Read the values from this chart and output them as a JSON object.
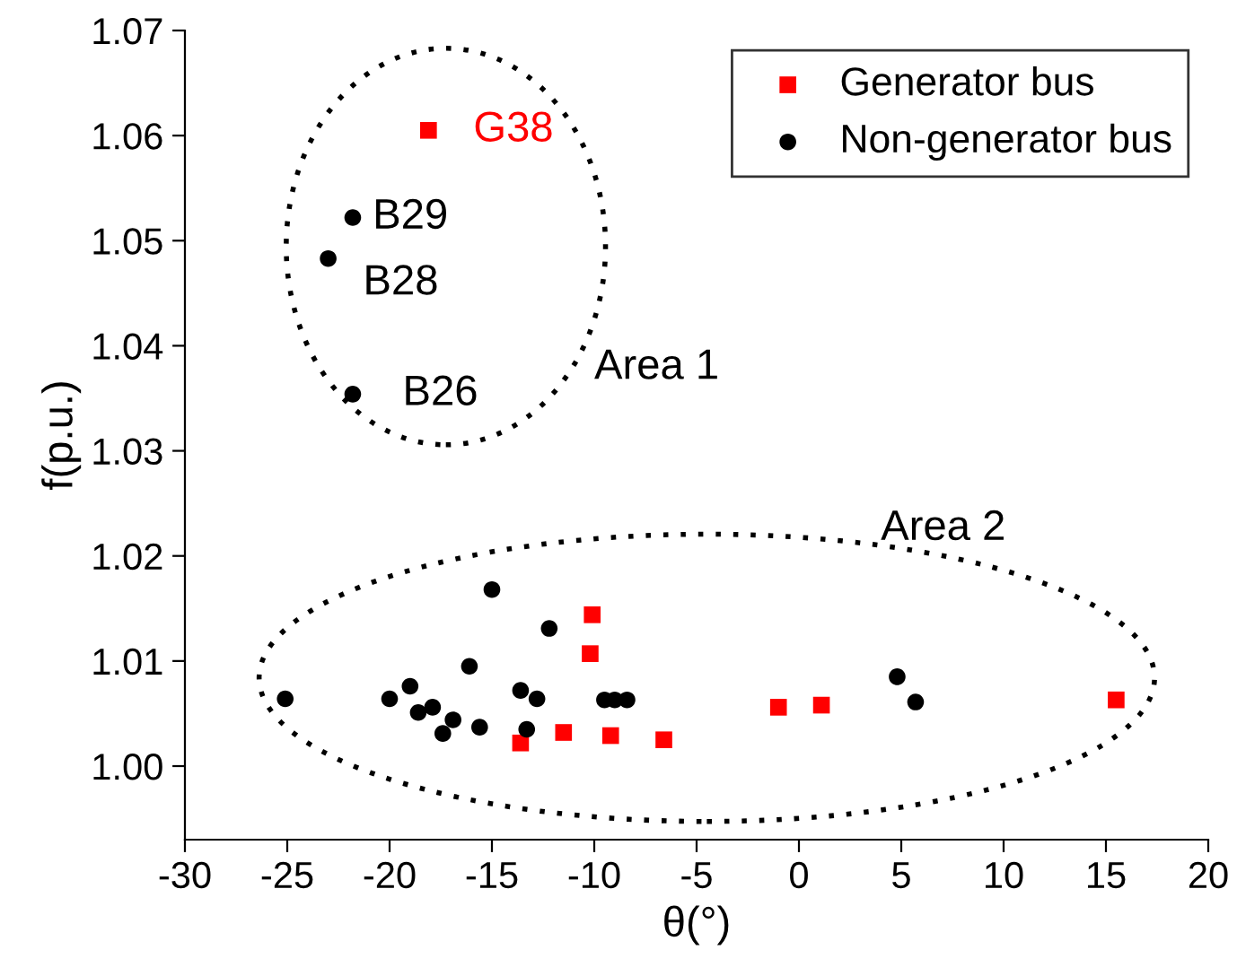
{
  "chart_data": {
    "type": "scatter",
    "xlabel": "θ(°)",
    "ylabel": "f(p.u.)",
    "xlim": [
      -30,
      20
    ],
    "ylim": [
      0.993,
      1.07
    ],
    "xticks": [
      -30,
      -25,
      -20,
      -15,
      -10,
      -5,
      0,
      5,
      10,
      15,
      20
    ],
    "yticks": [
      {
        "value": 1.0,
        "label": "1.00"
      },
      1.01,
      1.02,
      1.03,
      1.04,
      1.05,
      1.06,
      1.07
    ],
    "grid": false,
    "legend": "top right",
    "series": [
      {
        "name": "Generator bus",
        "color": "#ff0000",
        "marker": "square",
        "x": [
          -18.1,
          -13.6,
          -11.5,
          -9.2,
          -6.6,
          -10.1,
          -10.2,
          -1.0,
          1.1,
          15.5
        ],
        "values": [
          1.0605,
          1.0022,
          1.0032,
          1.0029,
          1.0025,
          1.0144,
          1.0107,
          1.0056,
          1.0058,
          1.0063
        ]
      },
      {
        "name": "Non-generator bus",
        "color": "#000000",
        "marker": "circle",
        "x": [
          -21.8,
          -23.0,
          -21.8,
          -25.1,
          -20.0,
          -19.0,
          -17.9,
          -18.6,
          -16.9,
          -17.4,
          -15.6,
          -16.1,
          -15.0,
          -12.2,
          -13.6,
          -12.8,
          -13.3,
          -9.5,
          -9.0,
          -8.4,
          4.8,
          5.7
        ],
        "values": [
          1.0522,
          1.0483,
          1.0354,
          1.0064,
          1.0064,
          1.0076,
          1.0056,
          1.0051,
          1.0044,
          1.0031,
          1.0037,
          1.0095,
          1.0168,
          1.0131,
          1.0072,
          1.0064,
          1.0035,
          1.0063,
          1.0063,
          1.0063,
          1.0085,
          1.0061
        ]
      }
    ],
    "annotations": [
      {
        "text": "G38",
        "x": -18.1,
        "y": 1.0605
      },
      {
        "text": "B29",
        "x": -21.8,
        "y": 1.0522
      },
      {
        "text": "B28",
        "x": -23.0,
        "y": 1.0483
      },
      {
        "text": "B26",
        "x": -21.8,
        "y": 1.0354
      },
      "Area 1",
      "Area 2"
    ]
  }
}
